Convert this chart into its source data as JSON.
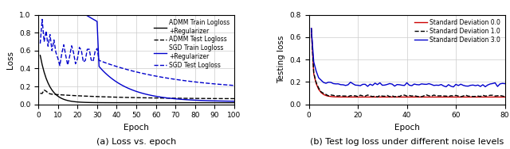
{
  "fig_width": 6.4,
  "fig_height": 1.88,
  "dpi": 100,
  "plot1": {
    "xlim": [
      0,
      100
    ],
    "ylim": [
      0.0,
      1.0
    ],
    "xticks": [
      0,
      10,
      20,
      30,
      40,
      50,
      60,
      70,
      80,
      90,
      100
    ],
    "yticks": [
      0.0,
      0.2,
      0.4,
      0.6,
      0.8,
      1.0
    ],
    "xlabel": "Epoch",
    "ylabel": "Loss",
    "caption": "(a) Loss vs. epoch",
    "legend": [
      {
        "label": "ADMM Train Logloss\n+Regularizer",
        "color": "#000000",
        "linestyle": "solid"
      },
      {
        "label": "ADMM Test Logloss",
        "color": "#000000",
        "linestyle": "dashed"
      },
      {
        "label": "SGD Train Logloss\n+Regularizer",
        "color": "#0000cc",
        "linestyle": "solid"
      },
      {
        "label": "SGD Test Logloss",
        "color": "#0000cc",
        "linestyle": "dashed"
      }
    ]
  },
  "plot2": {
    "xlim": [
      0,
      80
    ],
    "ylim": [
      0.0,
      0.8
    ],
    "xticks": [
      0,
      20,
      40,
      60,
      80
    ],
    "yticks": [
      0.0,
      0.2,
      0.4,
      0.6,
      0.8
    ],
    "xlabel": "Epoch",
    "ylabel": "Testing loss",
    "caption": "(b) Test log loss under different noise levels",
    "legend": [
      {
        "label": "Standard Deviation 0.0",
        "color": "#cc0000",
        "linestyle": "solid"
      },
      {
        "label": "Standard Deviation 1.0",
        "color": "#000000",
        "linestyle": "dashed"
      },
      {
        "label": "Standard Deviation 3.0",
        "color": "#0000cc",
        "linestyle": "solid"
      }
    ]
  }
}
